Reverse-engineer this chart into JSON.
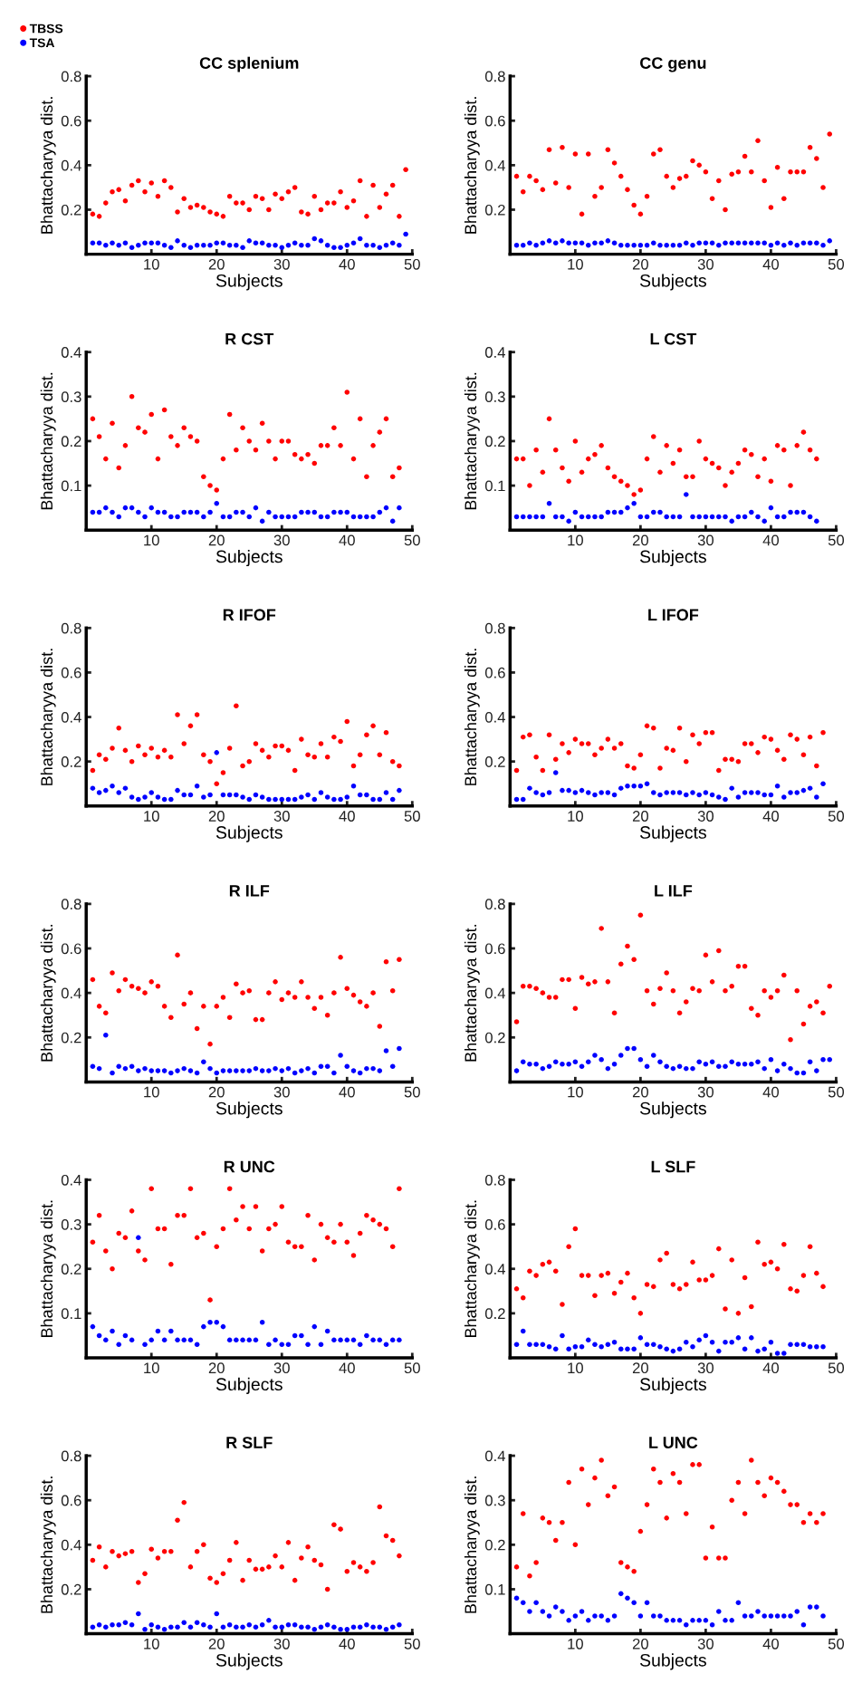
{
  "chart_data": [
    {
      "type": "scatter",
      "title": "CC splenium",
      "xlabel": "Subjects",
      "ylabel": "Bhattacharyya dist.",
      "marker": "circle",
      "legend": "top left",
      "grid": false,
      "x": [
        1,
        2,
        3,
        4,
        5,
        6,
        7,
        8,
        9,
        10,
        11,
        12,
        13,
        14,
        15,
        16,
        17,
        18,
        19,
        20,
        21,
        22,
        23,
        24,
        25,
        26,
        27,
        28,
        29,
        30,
        31,
        32,
        33,
        34,
        35,
        36,
        37,
        38,
        39,
        40,
        41,
        42,
        43,
        44,
        45,
        46,
        47,
        48,
        49
      ],
      "xlim": [
        0,
        50
      ],
      "xticks": [
        10,
        20,
        30,
        40,
        50
      ],
      "ylim": [
        0,
        0.8
      ],
      "yticks": [
        0.2,
        0.4,
        0.6,
        0.8
      ],
      "series": [
        {
          "name": "TBSS",
          "color": "#ff0000",
          "values": [
            0.18,
            0.17,
            0.23,
            0.28,
            0.29,
            0.24,
            0.31,
            0.33,
            0.28,
            0.32,
            0.26,
            0.33,
            0.3,
            0.19,
            0.25,
            0.21,
            0.22,
            0.21,
            0.19,
            0.18,
            0.17,
            0.26,
            0.23,
            0.23,
            0.2,
            0.26,
            0.25,
            0.2,
            0.27,
            0.25,
            0.28,
            0.3,
            0.19,
            0.18,
            0.26,
            0.2,
            0.23,
            0.23,
            0.28,
            0.21,
            0.24,
            0.33,
            0.17,
            0.31,
            0.21,
            0.27,
            0.31,
            0.17,
            0.38
          ]
        },
        {
          "name": "TSA",
          "color": "#0000ff",
          "values": [
            0.05,
            0.05,
            0.04,
            0.05,
            0.04,
            0.05,
            0.03,
            0.04,
            0.05,
            0.05,
            0.05,
            0.04,
            0.03,
            0.06,
            0.04,
            0.03,
            0.04,
            0.04,
            0.04,
            0.05,
            0.05,
            0.04,
            0.04,
            0.03,
            0.06,
            0.05,
            0.05,
            0.04,
            0.04,
            0.03,
            0.04,
            0.05,
            0.04,
            0.04,
            0.07,
            0.06,
            0.04,
            0.03,
            0.03,
            0.04,
            0.05,
            0.07,
            0.04,
            0.04,
            0.03,
            0.04,
            0.05,
            0.04,
            0.09
          ]
        }
      ]
    },
    {
      "type": "scatter",
      "title": "CC genu",
      "xlabel": "Subjects",
      "ylabel": "Bhattacharyya dist.",
      "marker": "circle",
      "grid": false,
      "x": [
        1,
        2,
        3,
        4,
        5,
        6,
        7,
        8,
        9,
        10,
        11,
        12,
        13,
        14,
        15,
        16,
        17,
        18,
        19,
        20,
        21,
        22,
        23,
        24,
        25,
        26,
        27,
        28,
        29,
        30,
        31,
        32,
        33,
        34,
        35,
        36,
        37,
        38,
        39,
        40,
        41,
        42,
        43,
        44,
        45,
        46,
        47,
        48,
        49
      ],
      "xlim": [
        0,
        50
      ],
      "xticks": [
        10,
        20,
        30,
        40,
        50
      ],
      "ylim": [
        0,
        0.8
      ],
      "yticks": [
        0.2,
        0.4,
        0.6,
        0.8
      ],
      "series": [
        {
          "color": "#ff0000",
          "values": [
            0.35,
            0.28,
            0.35,
            0.33,
            0.29,
            0.47,
            0.32,
            0.48,
            0.3,
            0.45,
            0.18,
            0.45,
            0.26,
            0.3,
            0.47,
            0.41,
            0.35,
            0.29,
            0.22,
            0.18,
            0.26,
            0.45,
            0.47,
            0.35,
            0.3,
            0.34,
            0.35,
            0.42,
            0.4,
            0.37,
            0.25,
            0.33,
            0.2,
            0.36,
            0.37,
            0.44,
            0.37,
            0.51,
            0.33,
            0.21,
            0.39,
            0.25,
            0.37,
            0.37,
            0.37,
            0.48,
            0.43,
            0.3,
            0.54
          ]
        },
        {
          "color": "#0000ff",
          "values": [
            0.04,
            0.04,
            0.05,
            0.04,
            0.05,
            0.06,
            0.05,
            0.06,
            0.05,
            0.05,
            0.05,
            0.04,
            0.05,
            0.05,
            0.06,
            0.05,
            0.04,
            0.04,
            0.04,
            0.04,
            0.04,
            0.05,
            0.04,
            0.04,
            0.04,
            0.04,
            0.05,
            0.04,
            0.05,
            0.05,
            0.05,
            0.04,
            0.05,
            0.05,
            0.05,
            0.05,
            0.05,
            0.05,
            0.05,
            0.04,
            0.05,
            0.04,
            0.05,
            0.04,
            0.05,
            0.05,
            0.05,
            0.04,
            0.06
          ]
        }
      ]
    },
    {
      "type": "scatter",
      "title": "R CST",
      "xlabel": "Subjects",
      "ylabel": "Bhattacharyya dist.",
      "marker": "circle",
      "grid": false,
      "x": [
        1,
        2,
        3,
        4,
        5,
        6,
        7,
        8,
        9,
        10,
        11,
        12,
        13,
        14,
        15,
        16,
        17,
        18,
        19,
        20,
        21,
        22,
        23,
        24,
        25,
        26,
        27,
        28,
        29,
        30,
        31,
        32,
        33,
        34,
        35,
        36,
        37,
        38,
        39,
        40,
        41,
        42,
        43,
        44,
        45,
        46,
        47,
        48
      ],
      "xlim": [
        0,
        50
      ],
      "xticks": [
        10,
        20,
        30,
        40,
        50
      ],
      "ylim": [
        0,
        0.4
      ],
      "yticks": [
        0.1,
        0.2,
        0.3,
        0.4
      ],
      "series": [
        {
          "color": "#ff0000",
          "values": [
            0.25,
            0.21,
            0.16,
            0.24,
            0.14,
            0.19,
            0.3,
            0.23,
            0.22,
            0.26,
            0.16,
            0.27,
            0.21,
            0.19,
            0.23,
            0.21,
            0.2,
            0.12,
            0.1,
            0.09,
            0.16,
            0.26,
            0.18,
            0.23,
            0.2,
            0.18,
            0.24,
            0.2,
            0.16,
            0.2,
            0.2,
            0.17,
            0.16,
            0.17,
            0.15,
            0.19,
            0.19,
            0.23,
            0.19,
            0.31,
            0.16,
            0.25,
            0.12,
            0.19,
            0.22,
            0.25,
            0.12,
            0.14
          ]
        },
        {
          "color": "#0000ff",
          "values": [
            0.04,
            0.04,
            0.05,
            0.04,
            0.03,
            0.05,
            0.05,
            0.04,
            0.03,
            0.05,
            0.04,
            0.04,
            0.03,
            0.03,
            0.04,
            0.04,
            0.04,
            0.03,
            0.04,
            0.06,
            0.03,
            0.03,
            0.04,
            0.04,
            0.03,
            0.05,
            0.02,
            0.04,
            0.03,
            0.03,
            0.03,
            0.03,
            0.04,
            0.04,
            0.04,
            0.03,
            0.03,
            0.04,
            0.04,
            0.04,
            0.03,
            0.03,
            0.03,
            0.03,
            0.04,
            0.05,
            0.02,
            0.05
          ]
        }
      ]
    },
    {
      "type": "scatter",
      "title": "L CST",
      "xlabel": "Subjects",
      "ylabel": "Bhattacharyya dist.",
      "marker": "circle",
      "grid": false,
      "x": [
        1,
        2,
        3,
        4,
        5,
        6,
        7,
        8,
        9,
        10,
        11,
        12,
        13,
        14,
        15,
        16,
        17,
        18,
        19,
        20,
        21,
        22,
        23,
        24,
        25,
        26,
        27,
        28,
        29,
        30,
        31,
        32,
        33,
        34,
        35,
        36,
        37,
        38,
        39,
        40,
        41,
        42,
        43,
        44,
        45,
        46,
        47
      ],
      "xlim": [
        0,
        50
      ],
      "xticks": [
        10,
        20,
        30,
        40,
        50
      ],
      "ylim": [
        0,
        0.4
      ],
      "yticks": [
        0.1,
        0.2,
        0.3,
        0.4
      ],
      "series": [
        {
          "color": "#ff0000",
          "values": [
            0.16,
            0.16,
            0.1,
            0.18,
            0.13,
            0.25,
            0.18,
            0.14,
            0.11,
            0.2,
            0.13,
            0.16,
            0.17,
            0.19,
            0.14,
            0.12,
            0.11,
            0.1,
            0.08,
            0.09,
            0.16,
            0.21,
            0.13,
            0.19,
            0.15,
            0.18,
            0.12,
            0.12,
            0.2,
            0.16,
            0.15,
            0.14,
            0.1,
            0.13,
            0.15,
            0.18,
            0.17,
            0.12,
            0.16,
            0.11,
            0.19,
            0.18,
            0.1,
            0.19,
            0.22,
            0.18,
            0.16
          ]
        },
        {
          "color": "#0000ff",
          "values": [
            0.03,
            0.03,
            0.03,
            0.03,
            0.03,
            0.06,
            0.03,
            0.03,
            0.02,
            0.04,
            0.03,
            0.03,
            0.03,
            0.03,
            0.04,
            0.04,
            0.04,
            0.05,
            0.06,
            0.03,
            0.03,
            0.04,
            0.04,
            0.03,
            0.03,
            0.03,
            0.08,
            0.03,
            0.03,
            0.03,
            0.03,
            0.03,
            0.03,
            0.02,
            0.03,
            0.03,
            0.04,
            0.03,
            0.02,
            0.05,
            0.03,
            0.03,
            0.04,
            0.04,
            0.04,
            0.03,
            0.02
          ]
        }
      ]
    },
    {
      "type": "scatter",
      "title": "R IFOF",
      "xlabel": "Subjects",
      "ylabel": "Bhattacharyya dist.",
      "marker": "circle",
      "grid": false,
      "x": [
        1,
        2,
        3,
        4,
        5,
        6,
        7,
        8,
        9,
        10,
        11,
        12,
        13,
        14,
        15,
        16,
        17,
        18,
        19,
        20,
        21,
        22,
        23,
        24,
        25,
        26,
        27,
        28,
        29,
        30,
        31,
        32,
        33,
        34,
        35,
        36,
        37,
        38,
        39,
        40,
        41,
        42,
        43,
        44,
        45,
        46,
        47,
        48
      ],
      "xlim": [
        0,
        50
      ],
      "xticks": [
        10,
        20,
        30,
        40,
        50
      ],
      "ylim": [
        0,
        0.8
      ],
      "yticks": [
        0.2,
        0.4,
        0.6,
        0.8
      ],
      "series": [
        {
          "color": "#ff0000",
          "values": [
            0.16,
            0.23,
            0.21,
            0.26,
            0.35,
            0.25,
            0.2,
            0.27,
            0.23,
            0.26,
            0.22,
            0.25,
            0.22,
            0.41,
            0.28,
            0.36,
            0.41,
            0.23,
            0.2,
            0.1,
            0.15,
            0.26,
            0.45,
            0.18,
            0.2,
            0.28,
            0.25,
            0.22,
            0.27,
            0.27,
            0.25,
            0.16,
            0.3,
            0.23,
            0.22,
            0.28,
            0.22,
            0.31,
            0.29,
            0.38,
            0.18,
            0.23,
            0.32,
            0.36,
            0.23,
            0.33,
            0.2,
            0.18
          ]
        },
        {
          "color": "#0000ff",
          "values": [
            0.08,
            0.06,
            0.07,
            0.09,
            0.06,
            0.08,
            0.04,
            0.03,
            0.04,
            0.06,
            0.04,
            0.03,
            0.03,
            0.07,
            0.05,
            0.05,
            0.09,
            0.04,
            0.05,
            0.24,
            0.05,
            0.05,
            0.05,
            0.04,
            0.03,
            0.05,
            0.04,
            0.03,
            0.03,
            0.03,
            0.03,
            0.03,
            0.04,
            0.05,
            0.03,
            0.06,
            0.04,
            0.03,
            0.03,
            0.04,
            0.09,
            0.05,
            0.05,
            0.03,
            0.03,
            0.06,
            0.03,
            0.07
          ]
        }
      ]
    },
    {
      "type": "scatter",
      "title": "L IFOF",
      "xlabel": "Subjects",
      "ylabel": "Bhattacharyya dist.",
      "marker": "circle",
      "grid": false,
      "x": [
        1,
        2,
        3,
        4,
        5,
        6,
        7,
        8,
        9,
        10,
        11,
        12,
        13,
        14,
        15,
        16,
        17,
        18,
        19,
        20,
        21,
        22,
        23,
        24,
        25,
        26,
        27,
        28,
        29,
        30,
        31,
        32,
        33,
        34,
        35,
        36,
        37,
        38,
        39,
        40,
        41,
        42,
        43,
        44,
        45,
        46,
        47,
        48
      ],
      "xlim": [
        0,
        50
      ],
      "xticks": [
        10,
        20,
        30,
        40,
        50
      ],
      "ylim": [
        0,
        0.8
      ],
      "yticks": [
        0.2,
        0.4,
        0.6,
        0.8
      ],
      "series": [
        {
          "color": "#ff0000",
          "values": [
            0.16,
            0.31,
            0.32,
            0.22,
            0.16,
            0.32,
            0.21,
            0.28,
            0.24,
            0.3,
            0.28,
            0.28,
            0.23,
            0.26,
            0.3,
            0.26,
            0.28,
            0.18,
            0.17,
            0.23,
            0.36,
            0.35,
            0.17,
            0.26,
            0.25,
            0.35,
            0.2,
            0.32,
            0.28,
            0.33,
            0.33,
            0.16,
            0.21,
            0.21,
            0.2,
            0.28,
            0.28,
            0.24,
            0.31,
            0.3,
            0.25,
            0.21,
            0.32,
            0.3,
            0.23,
            0.31,
            0.18,
            0.33
          ]
        },
        {
          "color": "#0000ff",
          "values": [
            0.03,
            0.03,
            0.08,
            0.06,
            0.05,
            0.06,
            0.15,
            0.07,
            0.07,
            0.06,
            0.07,
            0.06,
            0.05,
            0.06,
            0.06,
            0.05,
            0.08,
            0.09,
            0.09,
            0.09,
            0.1,
            0.06,
            0.05,
            0.06,
            0.06,
            0.06,
            0.05,
            0.06,
            0.05,
            0.06,
            0.05,
            0.04,
            0.03,
            0.08,
            0.04,
            0.06,
            0.06,
            0.06,
            0.05,
            0.05,
            0.09,
            0.04,
            0.06,
            0.06,
            0.07,
            0.08,
            0.04,
            0.1
          ]
        }
      ]
    },
    {
      "type": "scatter",
      "title": "R ILF",
      "xlabel": "Subjects",
      "ylabel": "Bhattacharyya dist.",
      "marker": "circle",
      "grid": false,
      "x": [
        1,
        2,
        3,
        4,
        5,
        6,
        7,
        8,
        9,
        10,
        11,
        12,
        13,
        14,
        15,
        16,
        17,
        18,
        19,
        20,
        21,
        22,
        23,
        24,
        25,
        26,
        27,
        28,
        29,
        30,
        31,
        32,
        33,
        34,
        35,
        36,
        37,
        38,
        39,
        40,
        41,
        42,
        43,
        44,
        45,
        46,
        47,
        48
      ],
      "xlim": [
        0,
        50
      ],
      "xticks": [
        10,
        20,
        30,
        40,
        50
      ],
      "ylim": [
        0,
        0.8
      ],
      "yticks": [
        0.2,
        0.4,
        0.6,
        0.8
      ],
      "series": [
        {
          "color": "#ff0000",
          "values": [
            0.46,
            0.34,
            0.31,
            0.49,
            0.41,
            0.46,
            0.43,
            0.42,
            0.4,
            0.45,
            0.43,
            0.34,
            0.29,
            0.57,
            0.35,
            0.4,
            0.24,
            0.34,
            0.17,
            0.34,
            0.38,
            0.29,
            0.44,
            0.4,
            0.41,
            0.28,
            0.28,
            0.4,
            0.45,
            0.37,
            0.4,
            0.38,
            0.45,
            0.38,
            0.33,
            0.38,
            0.3,
            0.4,
            0.56,
            0.42,
            0.39,
            0.36,
            0.34,
            0.4,
            0.25,
            0.54,
            0.41,
            0.55
          ]
        },
        {
          "color": "#0000ff",
          "values": [
            0.07,
            0.06,
            0.21,
            0.04,
            0.07,
            0.06,
            0.07,
            0.05,
            0.06,
            0.05,
            0.05,
            0.05,
            0.04,
            0.05,
            0.06,
            0.05,
            0.04,
            0.09,
            0.06,
            0.04,
            0.05,
            0.05,
            0.05,
            0.05,
            0.05,
            0.06,
            0.05,
            0.05,
            0.06,
            0.05,
            0.06,
            0.04,
            0.05,
            0.06,
            0.04,
            0.07,
            0.07,
            0.04,
            0.12,
            0.07,
            0.05,
            0.04,
            0.06,
            0.06,
            0.05,
            0.14,
            0.07,
            0.15
          ]
        }
      ]
    },
    {
      "type": "scatter",
      "title": "L ILF",
      "xlabel": "Subjects",
      "ylabel": "Bhattacharyya dist.",
      "marker": "circle",
      "grid": false,
      "x": [
        1,
        2,
        3,
        4,
        5,
        6,
        7,
        8,
        9,
        10,
        11,
        12,
        13,
        14,
        15,
        16,
        17,
        18,
        19,
        20,
        21,
        22,
        23,
        24,
        25,
        26,
        27,
        28,
        29,
        30,
        31,
        32,
        33,
        34,
        35,
        36,
        37,
        38,
        39,
        40,
        41,
        42,
        43,
        44,
        45,
        46,
        47,
        48,
        49
      ],
      "xlim": [
        0,
        50
      ],
      "xticks": [
        10,
        20,
        30,
        40,
        50
      ],
      "ylim": [
        0,
        0.8
      ],
      "yticks": [
        0.2,
        0.4,
        0.6,
        0.8
      ],
      "series": [
        {
          "color": "#ff0000",
          "values": [
            0.27,
            0.43,
            0.43,
            0.42,
            0.4,
            0.38,
            0.38,
            0.46,
            0.46,
            0.33,
            0.47,
            0.44,
            0.45,
            0.69,
            0.45,
            0.31,
            0.53,
            0.61,
            0.55,
            0.75,
            0.41,
            0.35,
            0.42,
            0.49,
            0.41,
            0.31,
            0.36,
            0.42,
            0.41,
            0.57,
            0.45,
            0.59,
            0.41,
            0.43,
            0.52,
            0.52,
            0.33,
            0.3,
            0.41,
            0.38,
            0.41,
            0.48,
            0.19,
            0.41,
            0.26,
            0.34,
            0.36,
            0.31,
            0.43
          ]
        },
        {
          "color": "#0000ff",
          "values": [
            0.05,
            0.09,
            0.08,
            0.08,
            0.06,
            0.07,
            0.09,
            0.08,
            0.08,
            0.09,
            0.07,
            0.09,
            0.12,
            0.1,
            0.06,
            0.08,
            0.12,
            0.15,
            0.15,
            0.1,
            0.07,
            0.12,
            0.09,
            0.07,
            0.06,
            0.07,
            0.06,
            0.06,
            0.09,
            0.08,
            0.09,
            0.07,
            0.07,
            0.09,
            0.08,
            0.08,
            0.08,
            0.09,
            0.06,
            0.1,
            0.05,
            0.08,
            0.06,
            0.04,
            0.04,
            0.09,
            0.05,
            0.1,
            0.1
          ]
        }
      ]
    },
    {
      "type": "scatter",
      "title": "R UNC",
      "xlabel": "Subjects",
      "ylabel": "Bhattacharyya dist.",
      "marker": "circle",
      "grid": false,
      "x": [
        1,
        2,
        3,
        4,
        5,
        6,
        7,
        8,
        9,
        10,
        11,
        12,
        13,
        14,
        15,
        16,
        17,
        18,
        19,
        20,
        21,
        22,
        23,
        24,
        25,
        26,
        27,
        28,
        29,
        30,
        31,
        32,
        33,
        34,
        35,
        36,
        37,
        38,
        39,
        40,
        41,
        42,
        43,
        44,
        45,
        46,
        47,
        48
      ],
      "xlim": [
        0,
        50
      ],
      "xticks": [
        10,
        20,
        30,
        40,
        50
      ],
      "ylim": [
        0,
        0.4
      ],
      "yticks": [
        0.1,
        0.2,
        0.3,
        0.4
      ],
      "series": [
        {
          "color": "#ff0000",
          "values": [
            0.26,
            0.32,
            0.24,
            0.2,
            0.28,
            0.27,
            0.33,
            0.24,
            0.22,
            0.38,
            0.29,
            0.29,
            0.21,
            0.32,
            0.32,
            0.38,
            0.27,
            0.28,
            0.13,
            0.25,
            0.29,
            0.38,
            0.31,
            0.34,
            0.29,
            0.34,
            0.24,
            0.29,
            0.3,
            0.34,
            0.26,
            0.25,
            0.25,
            0.32,
            0.22,
            0.3,
            0.27,
            0.26,
            0.3,
            0.26,
            0.23,
            0.28,
            0.32,
            0.31,
            0.3,
            0.29,
            0.25,
            0.38
          ]
        },
        {
          "color": "#0000ff",
          "values": [
            0.07,
            0.05,
            0.04,
            0.06,
            0.03,
            0.05,
            0.04,
            0.27,
            0.03,
            0.04,
            0.06,
            0.04,
            0.06,
            0.04,
            0.04,
            0.04,
            0.03,
            0.07,
            0.08,
            0.08,
            0.07,
            0.04,
            0.04,
            0.04,
            0.04,
            0.04,
            0.08,
            0.03,
            0.04,
            0.03,
            0.03,
            0.05,
            0.05,
            0.03,
            0.07,
            0.03,
            0.06,
            0.04,
            0.04,
            0.04,
            0.04,
            0.03,
            0.05,
            0.04,
            0.04,
            0.03,
            0.04,
            0.04
          ]
        }
      ]
    },
    {
      "type": "scatter",
      "title": "L SLF",
      "xlabel": "Subjects",
      "ylabel": "Bhattacharyya dist.",
      "marker": "circle",
      "grid": false,
      "x": [
        1,
        2,
        3,
        4,
        5,
        6,
        7,
        8,
        9,
        10,
        11,
        12,
        13,
        14,
        15,
        16,
        17,
        18,
        19,
        20,
        21,
        22,
        23,
        24,
        25,
        26,
        27,
        28,
        29,
        30,
        31,
        32,
        33,
        34,
        35,
        36,
        37,
        38,
        39,
        40,
        41,
        42,
        43,
        44,
        45,
        46,
        47,
        48
      ],
      "xlim": [
        0,
        50
      ],
      "xticks": [
        10,
        20,
        30,
        40,
        50
      ],
      "ylim": [
        0,
        0.8
      ],
      "yticks": [
        0.2,
        0.4,
        0.6,
        0.8
      ],
      "series": [
        {
          "color": "#ff0000",
          "values": [
            0.31,
            0.27,
            0.39,
            0.37,
            0.42,
            0.43,
            0.39,
            0.24,
            0.5,
            0.58,
            0.37,
            0.37,
            0.28,
            0.37,
            0.38,
            0.29,
            0.34,
            0.38,
            0.27,
            0.2,
            0.33,
            0.32,
            0.44,
            0.47,
            0.33,
            0.31,
            0.33,
            0.43,
            0.35,
            0.35,
            0.37,
            0.49,
            0.22,
            0.44,
            0.2,
            0.36,
            0.23,
            0.52,
            0.42,
            0.43,
            0.4,
            0.51,
            0.31,
            0.3,
            0.37,
            0.5,
            0.38,
            0.32
          ]
        },
        {
          "color": "#0000ff",
          "values": [
            0.06,
            0.12,
            0.06,
            0.06,
            0.06,
            0.05,
            0.04,
            0.1,
            0.04,
            0.05,
            0.05,
            0.08,
            0.06,
            0.05,
            0.06,
            0.07,
            0.04,
            0.04,
            0.04,
            0.09,
            0.06,
            0.06,
            0.05,
            0.04,
            0.03,
            0.04,
            0.07,
            0.05,
            0.08,
            0.1,
            0.07,
            0.03,
            0.07,
            0.07,
            0.09,
            0.04,
            0.09,
            0.03,
            0.04,
            0.07,
            0.02,
            0.02,
            0.06,
            0.06,
            0.06,
            0.05,
            0.05,
            0.05
          ]
        }
      ]
    },
    {
      "type": "scatter",
      "title": "R SLF",
      "xlabel": "Subjects",
      "ylabel": "Bhattacharyya dist.",
      "marker": "circle",
      "grid": false,
      "x": [
        1,
        2,
        3,
        4,
        5,
        6,
        7,
        8,
        9,
        10,
        11,
        12,
        13,
        14,
        15,
        16,
        17,
        18,
        19,
        20,
        21,
        22,
        23,
        24,
        25,
        26,
        27,
        28,
        29,
        30,
        31,
        32,
        33,
        34,
        35,
        36,
        37,
        38,
        39,
        40,
        41,
        42,
        43,
        44,
        45,
        46,
        47,
        48
      ],
      "xlim": [
        0,
        50
      ],
      "xticks": [
        10,
        20,
        30,
        40,
        50
      ],
      "ylim": [
        0,
        0.8
      ],
      "yticks": [
        0.2,
        0.4,
        0.6,
        0.8
      ],
      "series": [
        {
          "color": "#ff0000",
          "values": [
            0.33,
            0.39,
            0.3,
            0.37,
            0.35,
            0.36,
            0.37,
            0.23,
            0.27,
            0.38,
            0.34,
            0.37,
            0.37,
            0.51,
            0.59,
            0.3,
            0.37,
            0.4,
            0.25,
            0.23,
            0.27,
            0.33,
            0.41,
            0.24,
            0.33,
            0.29,
            0.29,
            0.3,
            0.35,
            0.3,
            0.41,
            0.24,
            0.34,
            0.39,
            0.33,
            0.31,
            0.2,
            0.49,
            0.47,
            0.28,
            0.32,
            0.3,
            0.28,
            0.32,
            0.57,
            0.44,
            0.42,
            0.35
          ]
        },
        {
          "color": "#0000ff",
          "values": [
            0.03,
            0.04,
            0.03,
            0.04,
            0.04,
            0.05,
            0.04,
            0.09,
            0.02,
            0.04,
            0.03,
            0.02,
            0.03,
            0.03,
            0.05,
            0.03,
            0.05,
            0.04,
            0.03,
            0.09,
            0.03,
            0.04,
            0.03,
            0.03,
            0.04,
            0.03,
            0.04,
            0.06,
            0.03,
            0.03,
            0.04,
            0.04,
            0.03,
            0.03,
            0.02,
            0.03,
            0.04,
            0.03,
            0.02,
            0.02,
            0.03,
            0.03,
            0.04,
            0.03,
            0.03,
            0.02,
            0.03,
            0.04
          ]
        }
      ]
    },
    {
      "type": "scatter",
      "title": "L UNC",
      "xlabel": "Subjects",
      "ylabel": "Bhattacharyya dist.",
      "marker": "circle",
      "grid": false,
      "x": [
        1,
        2,
        3,
        4,
        5,
        6,
        7,
        8,
        9,
        10,
        11,
        12,
        13,
        14,
        15,
        16,
        17,
        18,
        19,
        20,
        21,
        22,
        23,
        24,
        25,
        26,
        27,
        28,
        29,
        30,
        31,
        32,
        33,
        34,
        35,
        36,
        37,
        38,
        39,
        40,
        41,
        42,
        43,
        44,
        45,
        46,
        47,
        48
      ],
      "xlim": [
        0,
        50
      ],
      "xticks": [
        10,
        20,
        30,
        40,
        50
      ],
      "ylim": [
        0,
        0.4
      ],
      "yticks": [
        0.1,
        0.2,
        0.3,
        0.4
      ],
      "series": [
        {
          "color": "#ff0000",
          "values": [
            0.15,
            0.27,
            0.13,
            0.16,
            0.26,
            0.25,
            0.21,
            0.25,
            0.34,
            0.2,
            0.37,
            0.29,
            0.35,
            0.39,
            0.31,
            0.33,
            0.16,
            0.15,
            0.14,
            0.23,
            0.29,
            0.37,
            0.34,
            0.26,
            0.36,
            0.34,
            0.27,
            0.38,
            0.38,
            0.17,
            0.24,
            0.17,
            0.17,
            0.3,
            0.34,
            0.27,
            0.39,
            0.34,
            0.31,
            0.35,
            0.34,
            0.32,
            0.29,
            0.29,
            0.25,
            0.27,
            0.25,
            0.27
          ]
        },
        {
          "color": "#0000ff",
          "values": [
            0.08,
            0.07,
            0.05,
            0.07,
            0.05,
            0.04,
            0.06,
            0.05,
            0.03,
            0.04,
            0.05,
            0.03,
            0.04,
            0.04,
            0.03,
            0.04,
            0.09,
            0.08,
            0.07,
            0.04,
            0.07,
            0.04,
            0.04,
            0.03,
            0.03,
            0.03,
            0.02,
            0.03,
            0.03,
            0.03,
            0.02,
            0.05,
            0.03,
            0.03,
            0.07,
            0.04,
            0.04,
            0.05,
            0.04,
            0.04,
            0.04,
            0.04,
            0.04,
            0.05,
            0.02,
            0.06,
            0.06,
            0.04
          ]
        }
      ]
    }
  ]
}
